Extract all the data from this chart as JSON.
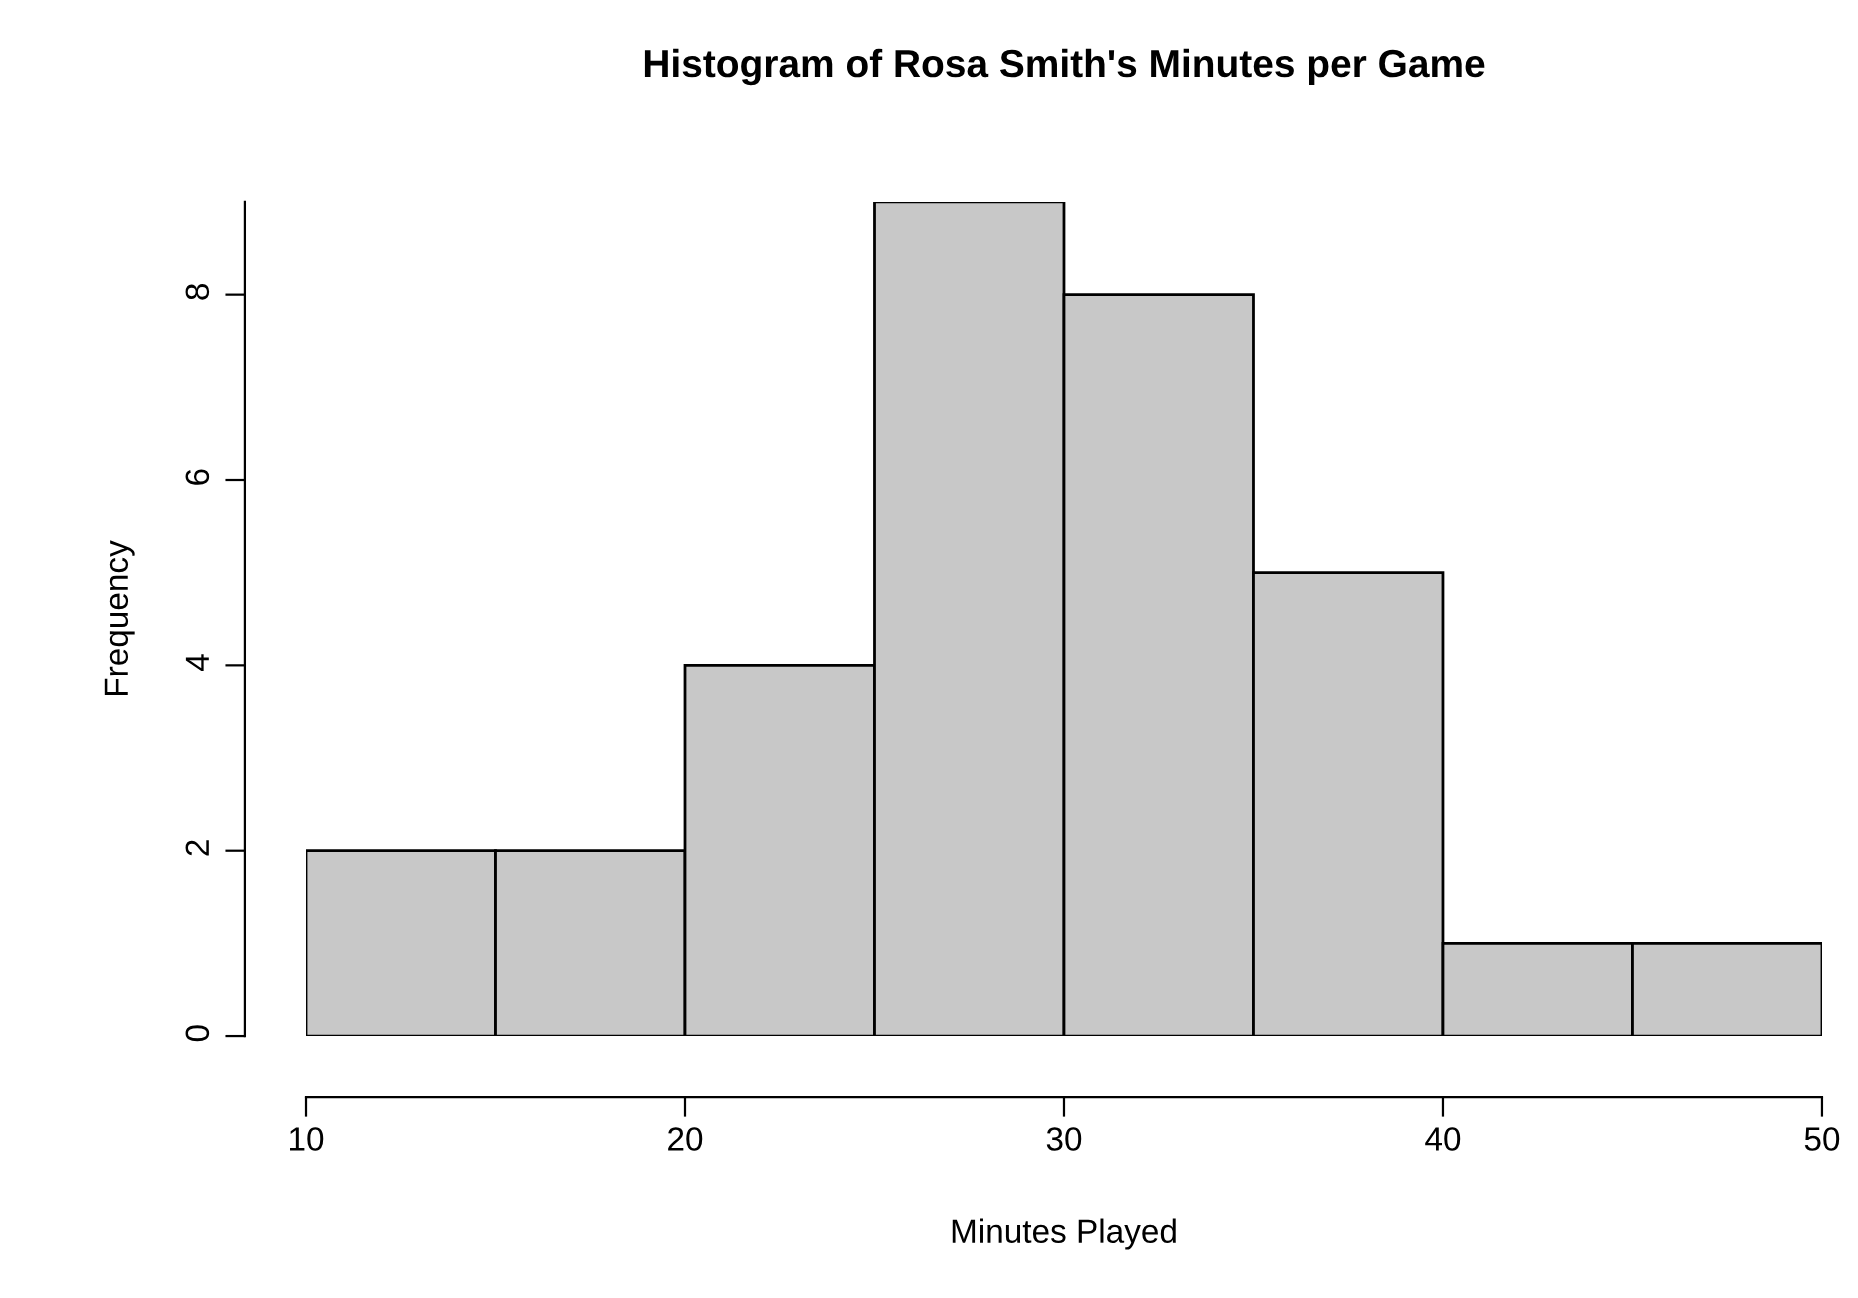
{
  "chart_data": {
    "type": "histogram",
    "title": "Histogram of Rosa Smith's Minutes per Game",
    "xlabel": "Minutes Played",
    "ylabel": "Frequency",
    "bins": [
      10,
      15,
      20,
      25,
      30,
      35,
      40,
      45,
      50
    ],
    "values": [
      2,
      2,
      4,
      9,
      8,
      5,
      1,
      1
    ],
    "color": "#c8c8c8",
    "xlim": [
      10,
      50
    ],
    "ylim": [
      0,
      9
    ],
    "xticks": [
      10,
      20,
      30,
      40,
      50
    ],
    "yticks": [
      0,
      2,
      4,
      6,
      8
    ],
    "grid": false
  }
}
